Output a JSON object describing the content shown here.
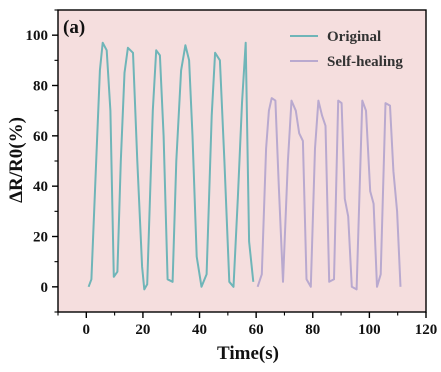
{
  "chart_data": {
    "type": "line",
    "panel_label": "(a)",
    "xlabel": "Time(s)",
    "ylabel": "ΔR/R0(%)",
    "xlim": [
      -10,
      120
    ],
    "ylim": [
      -10,
      110
    ],
    "x_ticks": [
      0,
      20,
      40,
      60,
      80,
      100,
      120
    ],
    "y_ticks": [
      0,
      20,
      40,
      60,
      80,
      100
    ],
    "background_color": "#f5dede",
    "legend_position": "top-right",
    "series": [
      {
        "name": "Original",
        "color": "#6fb5b8",
        "x": [
          0.8,
          1.8,
          3.5,
          4.8,
          5.8,
          7.2,
          8.5,
          9.7,
          11.0,
          12.2,
          13.5,
          14.7,
          16.5,
          18.0,
          19.7,
          20.5,
          21.5,
          23.5,
          24.7,
          26.0,
          27.3,
          28.7,
          30.5,
          31.8,
          33.5,
          35.0,
          36.3,
          37.5,
          39.0,
          40.7,
          42.5,
          44.3,
          45.5,
          47.2,
          48.8,
          50.5,
          52.0,
          53.5,
          55.0,
          56.3,
          57.5,
          59.0
        ],
        "y": [
          0,
          3,
          50,
          86,
          97,
          94,
          70,
          4,
          6,
          50,
          85,
          95,
          93,
          50,
          8,
          -1,
          1,
          70,
          94,
          92,
          60,
          3,
          2,
          50,
          86,
          96,
          90,
          60,
          12,
          0,
          5,
          68,
          93,
          90,
          50,
          2,
          0,
          35,
          73,
          97,
          18,
          2
        ]
      },
      {
        "name": "Self-healing",
        "color": "#b9a9cf",
        "x": [
          60.5,
          62.0,
          63.5,
          64.5,
          65.5,
          66.8,
          68.0,
          69.5,
          71.2,
          72.5,
          74.0,
          75.2,
          76.5,
          77.8,
          79.3,
          80.8,
          82.0,
          83.3,
          84.5,
          85.8,
          87.5,
          89.0,
          90.2,
          91.3,
          92.5,
          93.8,
          95.5,
          97.5,
          98.8,
          100.3,
          101.5,
          102.7,
          104.0,
          105.7,
          107.3,
          108.5,
          109.8,
          111.0
        ],
        "y": [
          0,
          5,
          55,
          70,
          75,
          74,
          40,
          2,
          50,
          74,
          70,
          61,
          58,
          3,
          0,
          55,
          74,
          68,
          64,
          2,
          3,
          74,
          73,
          35,
          28,
          0,
          -1,
          74,
          70,
          38,
          33,
          0,
          5,
          73,
          72,
          46,
          30,
          0
        ]
      }
    ]
  }
}
